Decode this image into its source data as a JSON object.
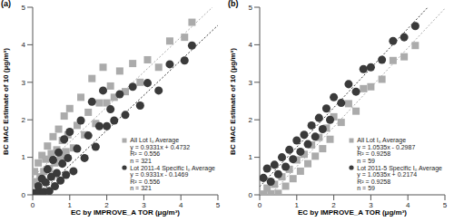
{
  "chart_data": [
    {
      "type": "scatter",
      "title": "(a)",
      "x_label": "EC by IMPROVE_A TOR (μg/m³)",
      "y_label": "BC MAC Estimate of 10 (μg/m³)",
      "xlim": [
        0,
        5
      ],
      "ylim": [
        0,
        5
      ],
      "xticks": [
        0,
        1,
        2,
        3,
        4,
        5
      ],
      "yticks": [
        0,
        1,
        2,
        3,
        4,
        5
      ],
      "grid": false,
      "legend": "lower right",
      "series": [
        {
          "name": "All Lot I₀ Average",
          "color": "#ababab",
          "marker": "square",
          "line_style": "dotted",
          "x": [
            0.05,
            0.1,
            0.15,
            0.2,
            0.25,
            0.3,
            0.35,
            0.4,
            0.45,
            0.5,
            0.55,
            0.6,
            0.65,
            0.7,
            0.75,
            0.8,
            0.85,
            0.9,
            0.95,
            1.0,
            1.1,
            1.2,
            1.3,
            1.4,
            1.5,
            1.6,
            1.7,
            1.8,
            1.9,
            2.0,
            2.1,
            2.2,
            2.35,
            2.5,
            2.7,
            2.9,
            3.1,
            3.4,
            3.7,
            4.1,
            4.3
          ],
          "values": [
            0.62,
            0.35,
            0.85,
            0.48,
            1.05,
            0.62,
            0.95,
            1.3,
            0.7,
            1.1,
            1.55,
            0.85,
            1.2,
            1.75,
            1.0,
            1.45,
            2.1,
            1.15,
            1.6,
            2.3,
            1.25,
            1.85,
            2.6,
            1.6,
            2.2,
            3.1,
            1.9,
            2.45,
            3.4,
            2.45,
            2.9,
            2.6,
            3.3,
            2.75,
            3.5,
            3.0,
            3.6,
            3.4,
            4.1,
            4.2,
            4.6
          ],
          "trendline": {
            "slope": 0.9331,
            "intercept": 0.4732
          },
          "annotations": [
            "y = 0.9331x + 0.4732",
            "R² = 0.556",
            "n = 321"
          ]
        },
        {
          "name": "Lot 2011-4 Specific I₀ Average",
          "color": "#3a3a3a",
          "marker": "circle",
          "line_style": "dotted",
          "x": [
            0.05,
            0.1,
            0.15,
            0.2,
            0.25,
            0.3,
            0.35,
            0.4,
            0.45,
            0.5,
            0.55,
            0.6,
            0.65,
            0.7,
            0.75,
            0.8,
            0.85,
            0.9,
            0.95,
            1.0,
            1.1,
            1.2,
            1.3,
            1.4,
            1.5,
            1.6,
            1.7,
            1.8,
            1.9,
            2.0,
            2.1,
            2.2,
            2.35,
            2.5,
            2.7,
            2.9,
            3.1,
            3.4,
            3.7,
            4.1,
            4.3
          ],
          "values": [
            0.05,
            0.03,
            0.23,
            0.06,
            0.43,
            0.08,
            0.33,
            0.68,
            0.1,
            0.48,
            0.93,
            0.23,
            0.58,
            1.13,
            0.38,
            0.83,
            1.48,
            0.53,
            0.98,
            1.68,
            0.63,
            1.23,
            1.98,
            0.98,
            1.58,
            2.48,
            1.28,
            1.83,
            2.78,
            1.83,
            2.28,
            1.98,
            2.68,
            2.13,
            2.88,
            2.38,
            2.98,
            2.78,
            3.48,
            3.58,
            3.98
          ],
          "trendline": {
            "slope": 0.9331,
            "intercept": -0.1469
          },
          "annotations": [
            "y = 0.9331x - 0.1469",
            "R² = 0.556",
            "n = 321"
          ]
        }
      ]
    },
    {
      "type": "scatter",
      "title": "(b)",
      "x_label": "EC by IMPROVE_A TOR (μg/m³)",
      "y_label": "BC MAC Estimate of 10 (μg/m³)",
      "xlim": [
        0,
        5
      ],
      "ylim": [
        0,
        5
      ],
      "xticks": [
        0,
        1,
        2,
        3,
        4,
        5
      ],
      "yticks": [
        0,
        1,
        2,
        3,
        4,
        5
      ],
      "grid": false,
      "legend": "lower right",
      "series": [
        {
          "name": "All Lot I₀ Average",
          "color": "#ababab",
          "marker": "square",
          "line_style": "dotted",
          "x": [
            0.1,
            0.2,
            0.3,
            0.4,
            0.5,
            0.6,
            0.7,
            0.8,
            0.9,
            1.0,
            1.1,
            1.2,
            1.3,
            1.4,
            1.5,
            1.6,
            1.7,
            1.8,
            1.9,
            2.0,
            2.2,
            2.4,
            2.6,
            2.8,
            3.0,
            3.3,
            3.6,
            3.9,
            4.2
          ],
          "values": [
            0.02,
            0.18,
            0.03,
            0.28,
            0.04,
            0.48,
            0.23,
            0.68,
            0.43,
            0.93,
            0.63,
            1.08,
            0.83,
            1.33,
            1.03,
            1.53,
            1.23,
            1.78,
            1.48,
            2.08,
            1.93,
            2.43,
            2.23,
            2.83,
            2.88,
            3.08,
            3.58,
            3.68,
            3.98
          ],
          "trendline": {
            "slope": 1.0535,
            "intercept": -0.2987
          },
          "annotations": [
            "y = 1.0535x - 0.2987",
            "R² = 0.9258",
            "n = 59"
          ]
        },
        {
          "name": "Lot 2011-5 Specific I₀ Average",
          "color": "#3a3a3a",
          "marker": "circle",
          "line_style": "dotted",
          "x": [
            0.1,
            0.2,
            0.3,
            0.4,
            0.5,
            0.6,
            0.7,
            0.8,
            0.9,
            1.0,
            1.1,
            1.2,
            1.3,
            1.4,
            1.5,
            1.6,
            1.7,
            1.8,
            1.9,
            2.0,
            2.2,
            2.4,
            2.6,
            2.8,
            3.0,
            3.3,
            3.6,
            3.9,
            4.2
          ],
          "values": [
            0.45,
            0.7,
            0.35,
            0.8,
            0.55,
            1.0,
            0.75,
            1.2,
            0.95,
            1.45,
            1.15,
            1.6,
            1.35,
            1.85,
            1.55,
            2.05,
            1.75,
            2.3,
            2.0,
            2.6,
            2.45,
            2.95,
            2.75,
            3.35,
            3.4,
            3.6,
            4.1,
            4.2,
            4.5
          ],
          "trendline": {
            "slope": 1.0535,
            "intercept": 0.2174
          },
          "annotations": [
            "y = 1.0535x + 0.2174",
            "R² = 0.9258",
            "n = 59"
          ]
        }
      ]
    }
  ]
}
